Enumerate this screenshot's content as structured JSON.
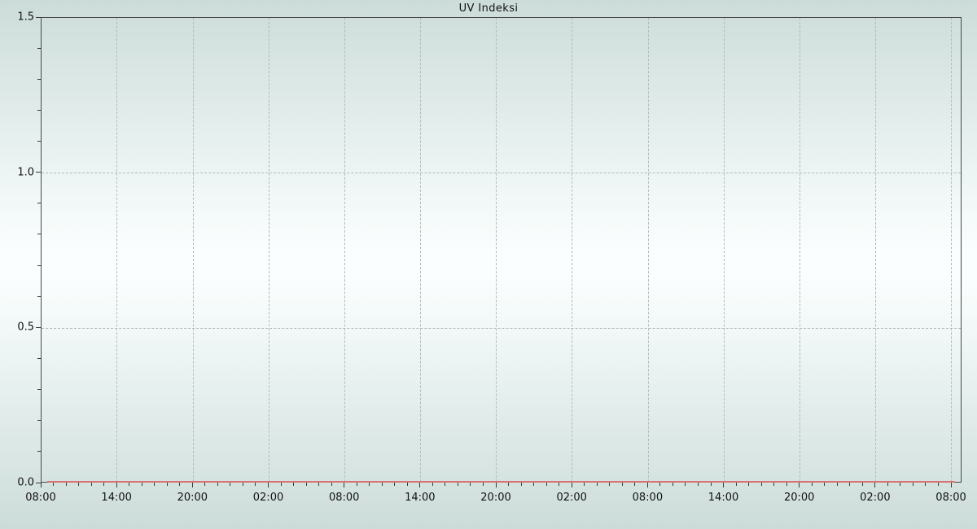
{
  "page": {
    "background_edge_color": "#ccdcd9",
    "background_center_color": "#fbfefe",
    "frame_color": "#474747",
    "grid_color": "#b2bbb9",
    "tick_color": "#3a3a3a",
    "text_color": "#121212"
  },
  "chart_data": {
    "type": "line",
    "title": "UV Indeksi",
    "xlabel": "",
    "ylabel": "",
    "ylim": [
      0.0,
      1.5
    ],
    "y_tick_labels": [
      "0.0",
      "0.5",
      "1.0",
      "1.5"
    ],
    "y_minor_ticks_per_major": 5,
    "x_tick_labels": [
      "08:00",
      "14:00",
      "20:00",
      "02:00",
      "08:00",
      "14:00",
      "20:00",
      "02:00",
      "08:00",
      "14:00",
      "20:00",
      "02:00",
      "08:00"
    ],
    "x_tick_interval_hours": 6,
    "x_minor_ticks_per_major": 6,
    "x_span_hours": 72,
    "grid": "dashed lines at major ticks, on",
    "legend": "none",
    "series": [
      {
        "name": "UV Indeksi",
        "color": "#d97373",
        "categories": [
          "08:00",
          "14:00",
          "20:00",
          "02:00",
          "08:00",
          "14:00",
          "20:00",
          "02:00",
          "08:00",
          "14:00",
          "20:00",
          "02:00",
          "08:00"
        ],
        "values": [
          0,
          0,
          0,
          0,
          0,
          0,
          0,
          0,
          0,
          0,
          0,
          0,
          0
        ]
      }
    ]
  }
}
